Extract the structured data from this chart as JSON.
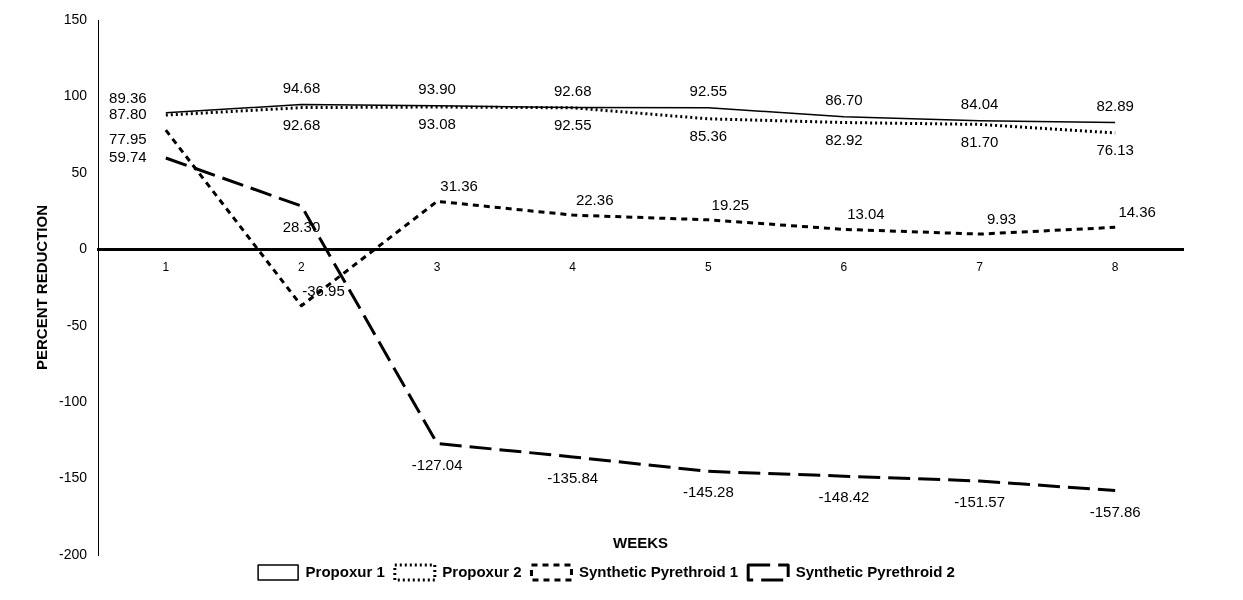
{
  "chart_data": {
    "type": "line",
    "xlabel": "WEEKS",
    "ylabel": "PERCENT REDUCTION",
    "categories": [
      "1",
      "2",
      "3",
      "4",
      "5",
      "6",
      "7",
      "8"
    ],
    "series": [
      {
        "name": "Propoxur 1",
        "color": "#000000",
        "line_style": "solid",
        "values": [
          89.36,
          94.68,
          93.9,
          92.68,
          92.55,
          86.7,
          84.04,
          82.89
        ],
        "value_labels": [
          "89.36",
          "94.68",
          "93.90",
          "92.68",
          "92.55",
          "86.70",
          "84.04",
          "82.89"
        ]
      },
      {
        "name": "Propoxur 2",
        "color": "#000000",
        "line_style": "dotted",
        "values": [
          87.8,
          92.68,
          93.08,
          92.55,
          85.36,
          82.92,
          81.7,
          76.13
        ],
        "value_labels": [
          "87.80",
          "92.68",
          "93.08",
          "92.55",
          "85.36",
          "82.92",
          "81.70",
          "76.13"
        ]
      },
      {
        "name": "Synthetic Pyrethroid 1",
        "color": "#000000",
        "line_style": "dashed",
        "values": [
          77.95,
          -36.95,
          31.36,
          22.36,
          19.25,
          13.04,
          9.93,
          14.36
        ],
        "value_labels": [
          "77.95",
          "-36.95",
          "31.36",
          "22.36",
          "19.25",
          "13.04",
          "9.93",
          "14.36"
        ]
      },
      {
        "name": "Synthetic Pyrethroid 2",
        "color": "#000000",
        "line_style": "longdash",
        "values": [
          59.74,
          28.3,
          -127.04,
          -135.84,
          -145.28,
          -148.42,
          -151.57,
          -157.86
        ],
        "value_labels": [
          "59.74",
          "28.30",
          "-127.04",
          "-135.84",
          "-145.28",
          "-148.42",
          "-151.57",
          "-157.86"
        ]
      }
    ],
    "ylim": [
      -200,
      150
    ],
    "yticks": [
      -200,
      -150,
      -100,
      -50,
      0,
      50,
      100,
      150
    ],
    "grid": false,
    "legend": "bottom",
    "marker": "none"
  }
}
